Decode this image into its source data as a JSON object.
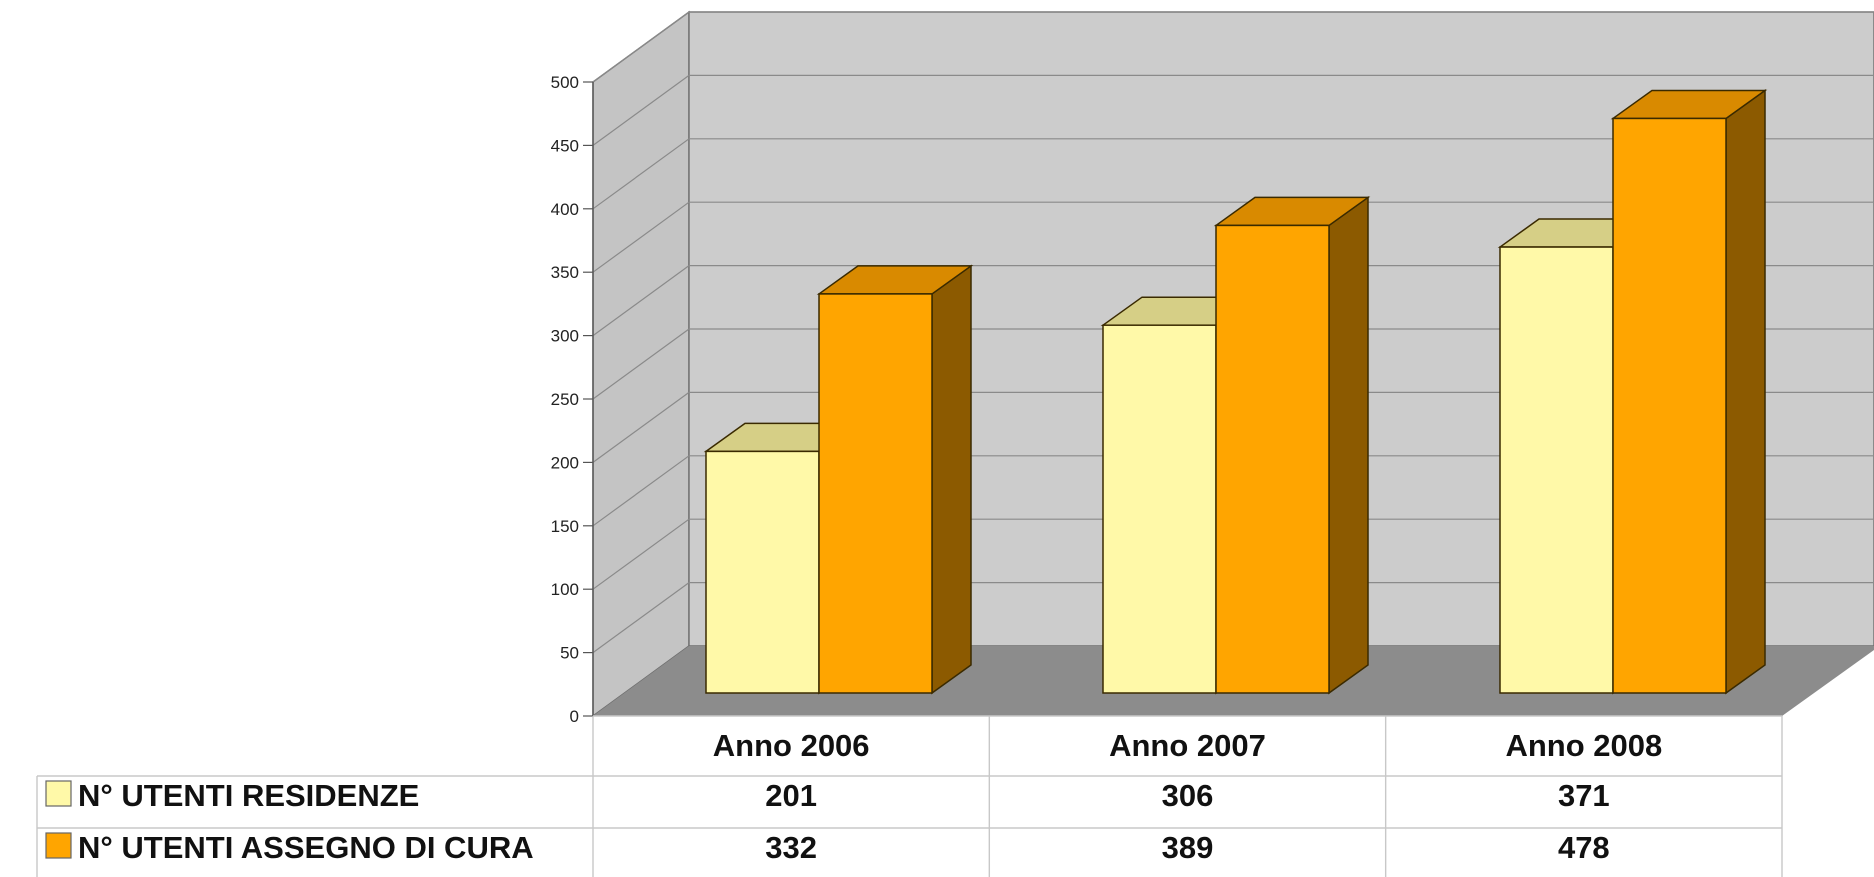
{
  "chart_data": {
    "type": "bar",
    "style": "3d-clustered-column-with-data-table",
    "categories": [
      "Anno 2006",
      "Anno 2007",
      "Anno 2008"
    ],
    "series": [
      {
        "name": "N° UTENTI RESIDENZE",
        "values": [
          201,
          306,
          371
        ],
        "color": "#fff9a8",
        "top_color": "#d6cf86"
      },
      {
        "name": "N° UTENTI ASSEGNO DI CURA",
        "values": [
          332,
          389,
          478
        ],
        "color": "#ffa500",
        "top_color": "#d98a00",
        "side_color": "#8c5a00"
      }
    ],
    "ylim": [
      0,
      500
    ],
    "yticks": [
      0,
      50,
      100,
      150,
      200,
      250,
      300,
      350,
      400,
      450,
      500
    ],
    "grid": true,
    "legend": "data-table-left",
    "colors": {
      "wall": "#cccccc",
      "floor": "#8c8c8c",
      "gridline": "#8a8a8a"
    }
  }
}
